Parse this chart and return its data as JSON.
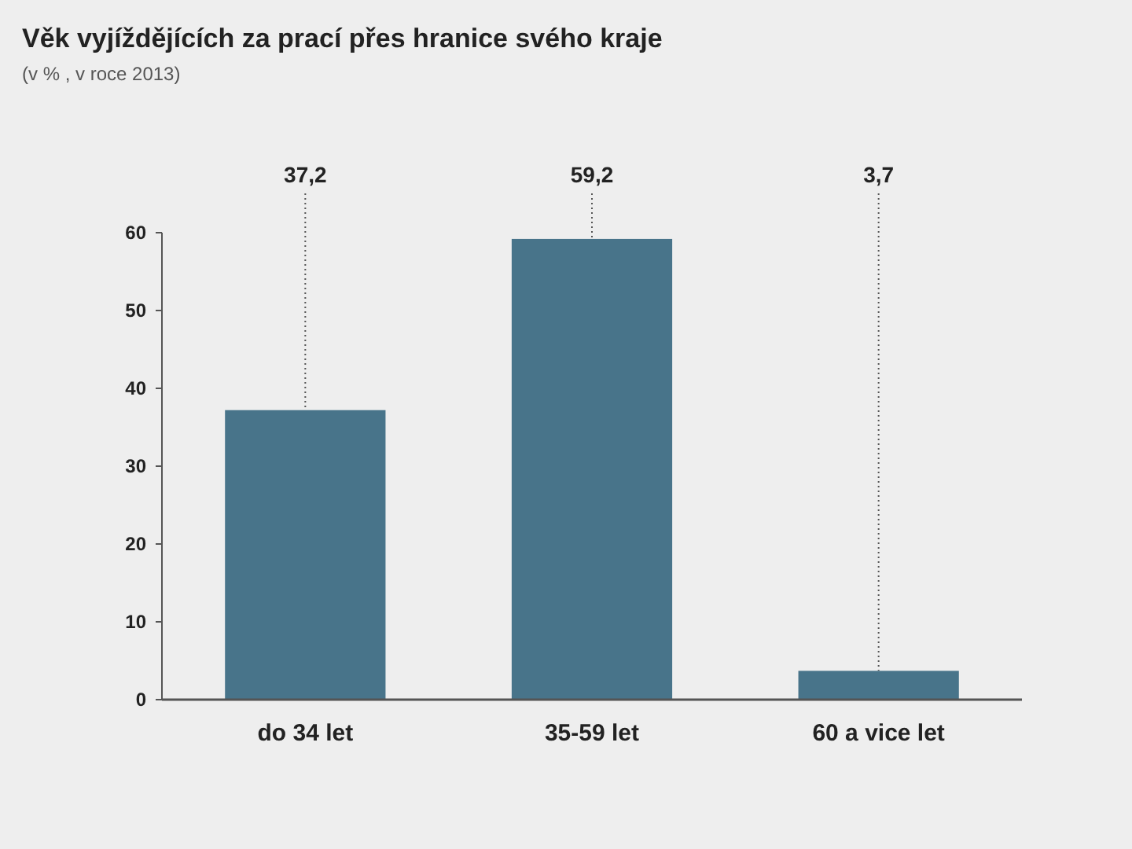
{
  "chart_data": {
    "type": "bar",
    "title": "Věk vyjíždějících za prací přes hranice svého kraje",
    "subtitle": "(v % , v roce 2013)",
    "categories": [
      "do 34 let",
      "35-59 let",
      "60 a vice let"
    ],
    "values": [
      37.2,
      59.2,
      3.7
    ],
    "value_labels": [
      "37,2",
      "59,2",
      "3,7"
    ],
    "color": "#48748a",
    "ylim": [
      0,
      60
    ],
    "yticks": [
      0,
      10,
      20,
      30,
      40,
      50,
      60
    ]
  }
}
